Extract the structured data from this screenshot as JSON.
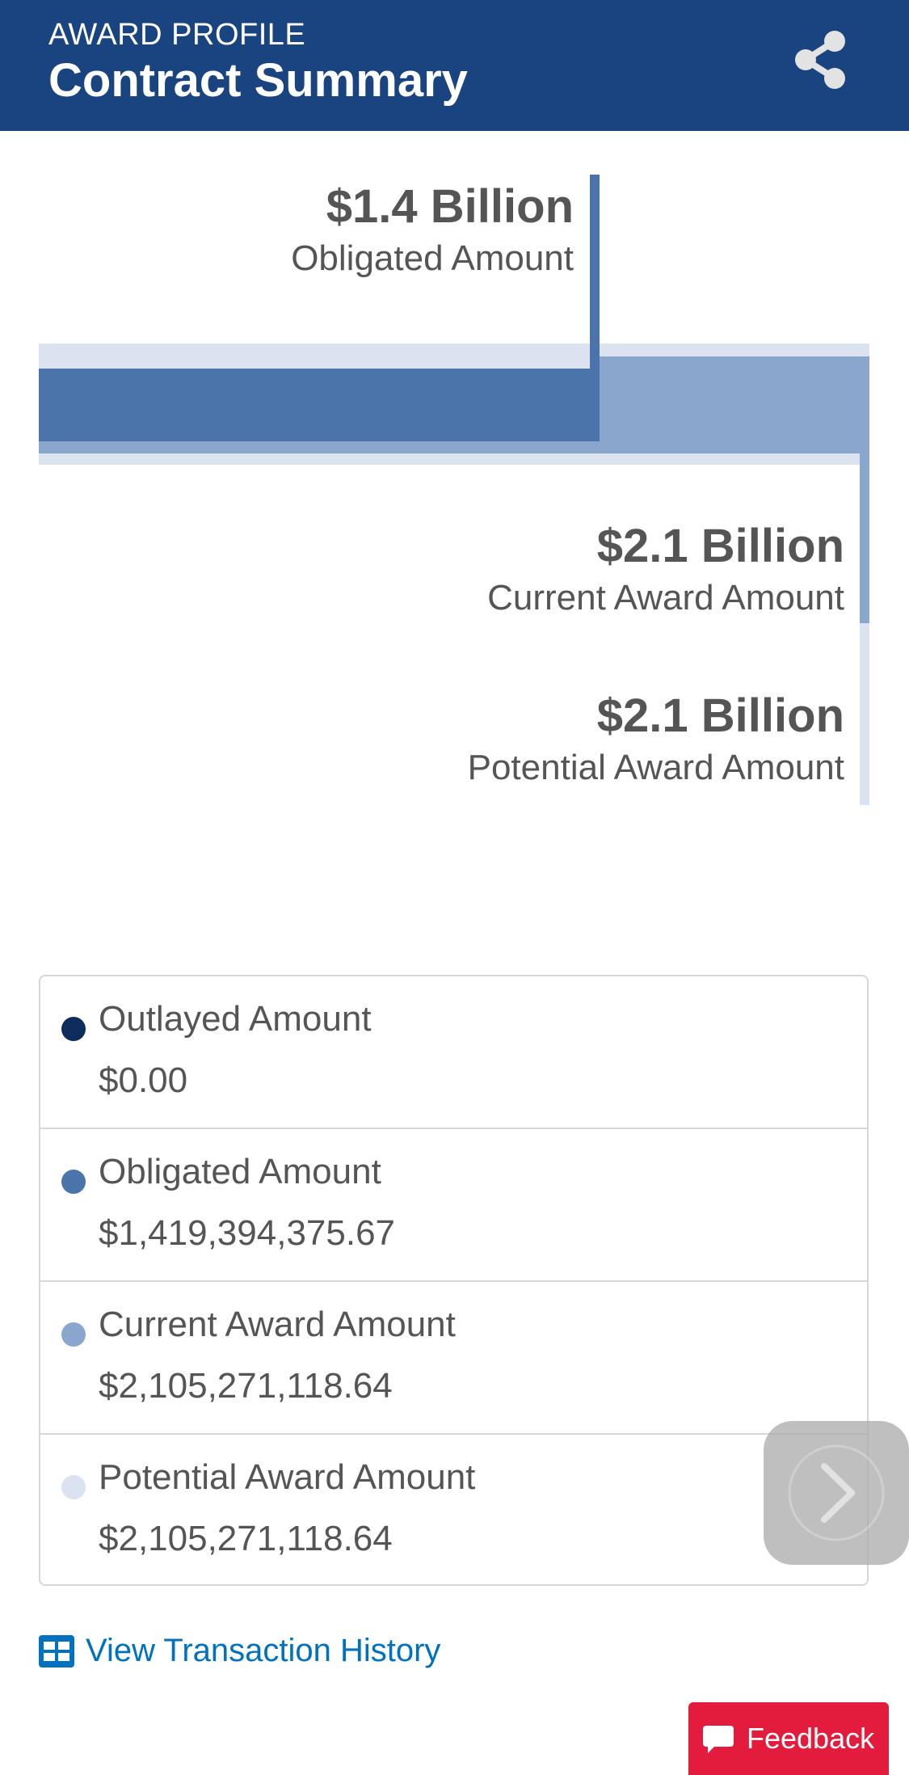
{
  "header": {
    "eyebrow": "AWARD PROFILE",
    "title": "Contract Summary",
    "share_icon": "share-icon"
  },
  "chart": {
    "obligated": {
      "amount": "$1.4 Billion",
      "label": "Obligated Amount"
    },
    "current": {
      "amount": "$2.1 Billion",
      "label": "Current Award Amount"
    },
    "potential": {
      "amount": "$2.1 Billion",
      "label": "Potential Award Amount"
    },
    "colors": {
      "outlayed": "#0f2d5c",
      "obligated": "#4a74aa",
      "current": "#8aa6cc",
      "potential": "#dbe3f0"
    }
  },
  "chart_data": {
    "type": "bar",
    "categories": [
      "Outlayed Amount",
      "Obligated Amount",
      "Current Award Amount",
      "Potential Award Amount"
    ],
    "values": [
      0.0,
      1419394375.67,
      2105271118.64,
      2105271118.64
    ]
  },
  "legend": {
    "rows": [
      {
        "label": "Outlayed Amount",
        "value": "$0.00",
        "color": "#0f2d5c"
      },
      {
        "label": "Obligated Amount",
        "value": "$1,419,394,375.67",
        "color": "#4a74aa"
      },
      {
        "label": "Current Award Amount",
        "value": "$2,105,271,118.64",
        "color": "#8aa6cc"
      },
      {
        "label": "Potential Award Amount",
        "value": "$2,105,271,118.64",
        "color": "#dbe3f0"
      }
    ]
  },
  "actions": {
    "transaction_history": "View Transaction History",
    "transaction_icon": "table-icon",
    "next_icon": "chevron-right-icon",
    "feedback": "Feedback",
    "feedback_icon": "speech-bubble-icon"
  }
}
